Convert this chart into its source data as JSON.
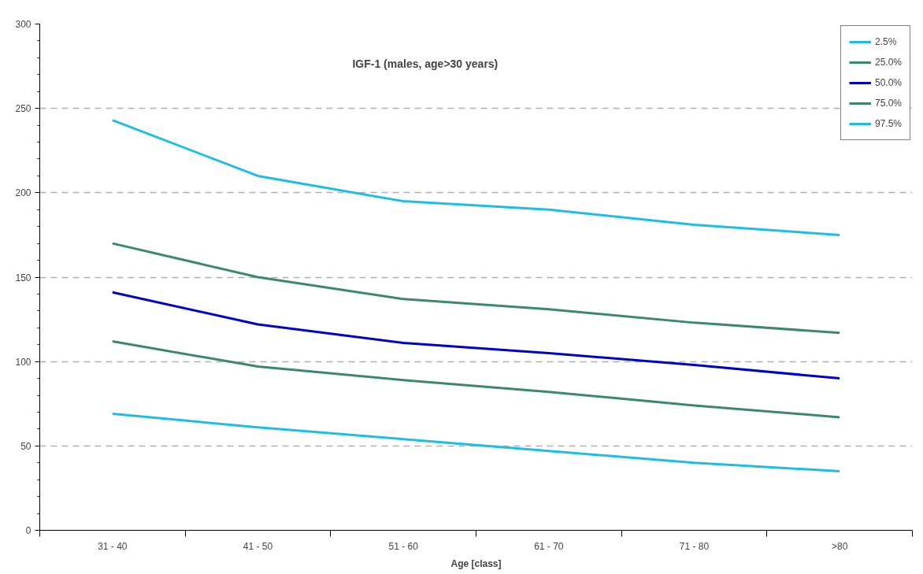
{
  "chart_data": {
    "type": "line",
    "title": "IGF-1 (males, age>30 years)",
    "xlabel": "Age [class]",
    "categories": [
      "31 - 40",
      "41 - 50",
      "51 - 60",
      "61 - 70",
      "71 - 80",
      ">80"
    ],
    "series": [
      {
        "name": "2.5%",
        "color": "#1ebde6",
        "values": [
          69,
          61,
          54,
          47,
          40,
          35
        ]
      },
      {
        "name": "25.0%",
        "color": "#3a8a6a",
        "values": [
          112,
          97,
          89,
          82,
          74,
          67
        ]
      },
      {
        "name": "50.0%",
        "color": "#0000cc",
        "values": [
          141,
          122,
          111,
          105,
          98,
          90
        ]
      },
      {
        "name": "75.0%",
        "color": "#3a8a6a",
        "values": [
          170,
          150,
          137,
          131,
          123,
          117
        ]
      },
      {
        "name": "97.5%",
        "color": "#1ebde6",
        "values": [
          243,
          210,
          195,
          190,
          181,
          175
        ]
      }
    ],
    "ylim": [
      0,
      300
    ],
    "yticks": [
      0,
      50,
      100,
      150,
      200,
      250,
      300
    ],
    "grid": "y",
    "legend": "top right",
    "marker": "none",
    "line_style": "solid"
  }
}
